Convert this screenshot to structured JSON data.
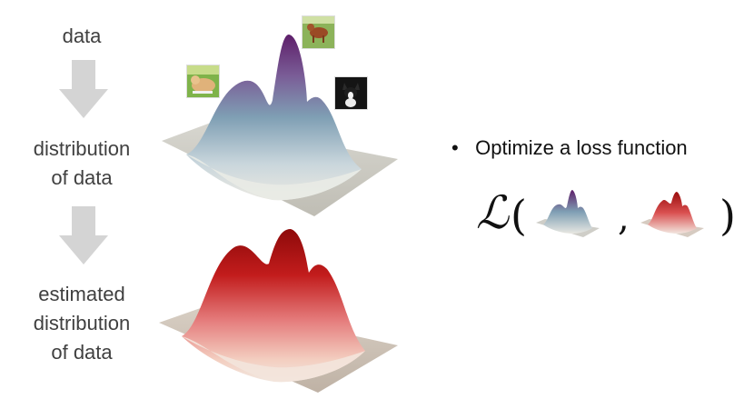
{
  "left_labels": {
    "data": "data",
    "distribution": [
      "distribution",
      "of data"
    ],
    "estimated": [
      "estimated",
      "distribution",
      "of data"
    ]
  },
  "bullet": {
    "text": "Optimize a loss function"
  },
  "formula": {
    "symbol": "ℒ",
    "open": "(",
    "comma": ",",
    "close": ")"
  },
  "colors": {
    "arrow": "#d4d4d4",
    "data_peak": "#6a2a74",
    "data_mid": "#7c9bb0",
    "data_base": "#e8e6df",
    "est_peak": "#b31010",
    "est_mid": "#e07070",
    "est_base": "#e8ded4"
  },
  "icons": [
    "dog-photo-lying",
    "dog-photo-brown",
    "dog-photo-black-white",
    "down-arrow-icon"
  ]
}
